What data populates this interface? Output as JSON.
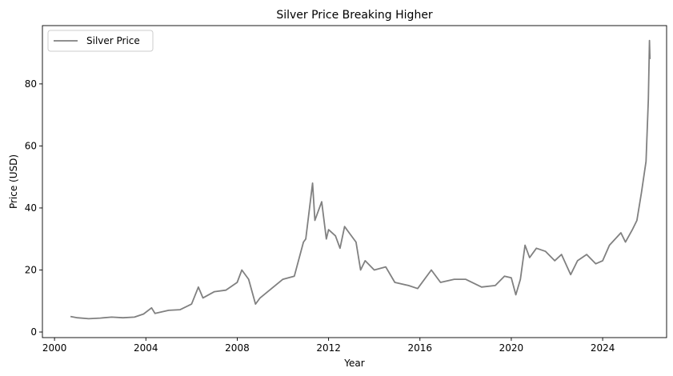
{
  "chart_data": {
    "type": "line",
    "title": "Silver Price Breaking Higher",
    "xlabel": "Year",
    "ylabel": "Price (USD)",
    "xlim": [
      1999.47,
      2026.8
    ],
    "ylim": [
      -1.8,
      98.8
    ],
    "xticks": [
      2000,
      2004,
      2008,
      2012,
      2016,
      2020,
      2024
    ],
    "xtick_labels": [
      "2000",
      "2004",
      "2008",
      "2012",
      "2016",
      "2020",
      "2024"
    ],
    "yticks": [
      0,
      20,
      40,
      60,
      80
    ],
    "ytick_labels": [
      "0",
      "20",
      "40",
      "60",
      "80"
    ],
    "grid": false,
    "legend_position": "top-left",
    "series": [
      {
        "name": "Silver Price",
        "color": "#808080",
        "x": [
          2000.7,
          2001.0,
          2001.5,
          2002.0,
          2002.5,
          2003.0,
          2003.5,
          2003.9,
          2004.25,
          2004.4,
          2005.0,
          2005.5,
          2006.0,
          2006.3,
          2006.5,
          2007.0,
          2007.5,
          2008.0,
          2008.2,
          2008.5,
          2008.8,
          2009.0,
          2009.5,
          2010.0,
          2010.5,
          2010.9,
          2011.0,
          2011.3,
          2011.4,
          2011.5,
          2011.7,
          2011.9,
          2012.0,
          2012.3,
          2012.5,
          2012.7,
          2012.9,
          2013.2,
          2013.4,
          2013.6,
          2014.0,
          2014.5,
          2014.9,
          2015.5,
          2015.9,
          2016.5,
          2016.9,
          2017.5,
          2018.0,
          2018.7,
          2019.3,
          2019.7,
          2020.0,
          2020.2,
          2020.4,
          2020.6,
          2020.8,
          2021.1,
          2021.5,
          2021.9,
          2022.2,
          2022.6,
          2022.9,
          2023.3,
          2023.7,
          2024.0,
          2024.3,
          2024.8,
          2025.0,
          2025.3,
          2025.5,
          2025.7,
          2025.9,
          2026.0,
          2026.05,
          2026.07
        ],
        "y": [
          5.0,
          4.6,
          4.3,
          4.5,
          4.8,
          4.6,
          4.8,
          5.8,
          7.8,
          6.0,
          7.0,
          7.2,
          9.0,
          14.5,
          11.0,
          13.0,
          13.5,
          16.0,
          20.0,
          17.0,
          9.0,
          11.0,
          14.0,
          17.0,
          18.0,
          29.0,
          30.0,
          48.0,
          36.0,
          38.0,
          42.0,
          30.0,
          33.0,
          31.0,
          27.0,
          34.0,
          32.0,
          29.0,
          20.0,
          23.0,
          20.0,
          21.0,
          16.0,
          15.0,
          14.0,
          20.0,
          16.0,
          17.0,
          17.0,
          14.5,
          15.0,
          18.0,
          17.5,
          12.0,
          17.0,
          28.0,
          24.0,
          27.0,
          26.0,
          23.0,
          25.0,
          18.5,
          23.0,
          25.0,
          22.0,
          23.0,
          28.0,
          32.0,
          29.0,
          33.0,
          36.0,
          45.0,
          55.0,
          75.0,
          94.0,
          88.0
        ]
      }
    ]
  }
}
